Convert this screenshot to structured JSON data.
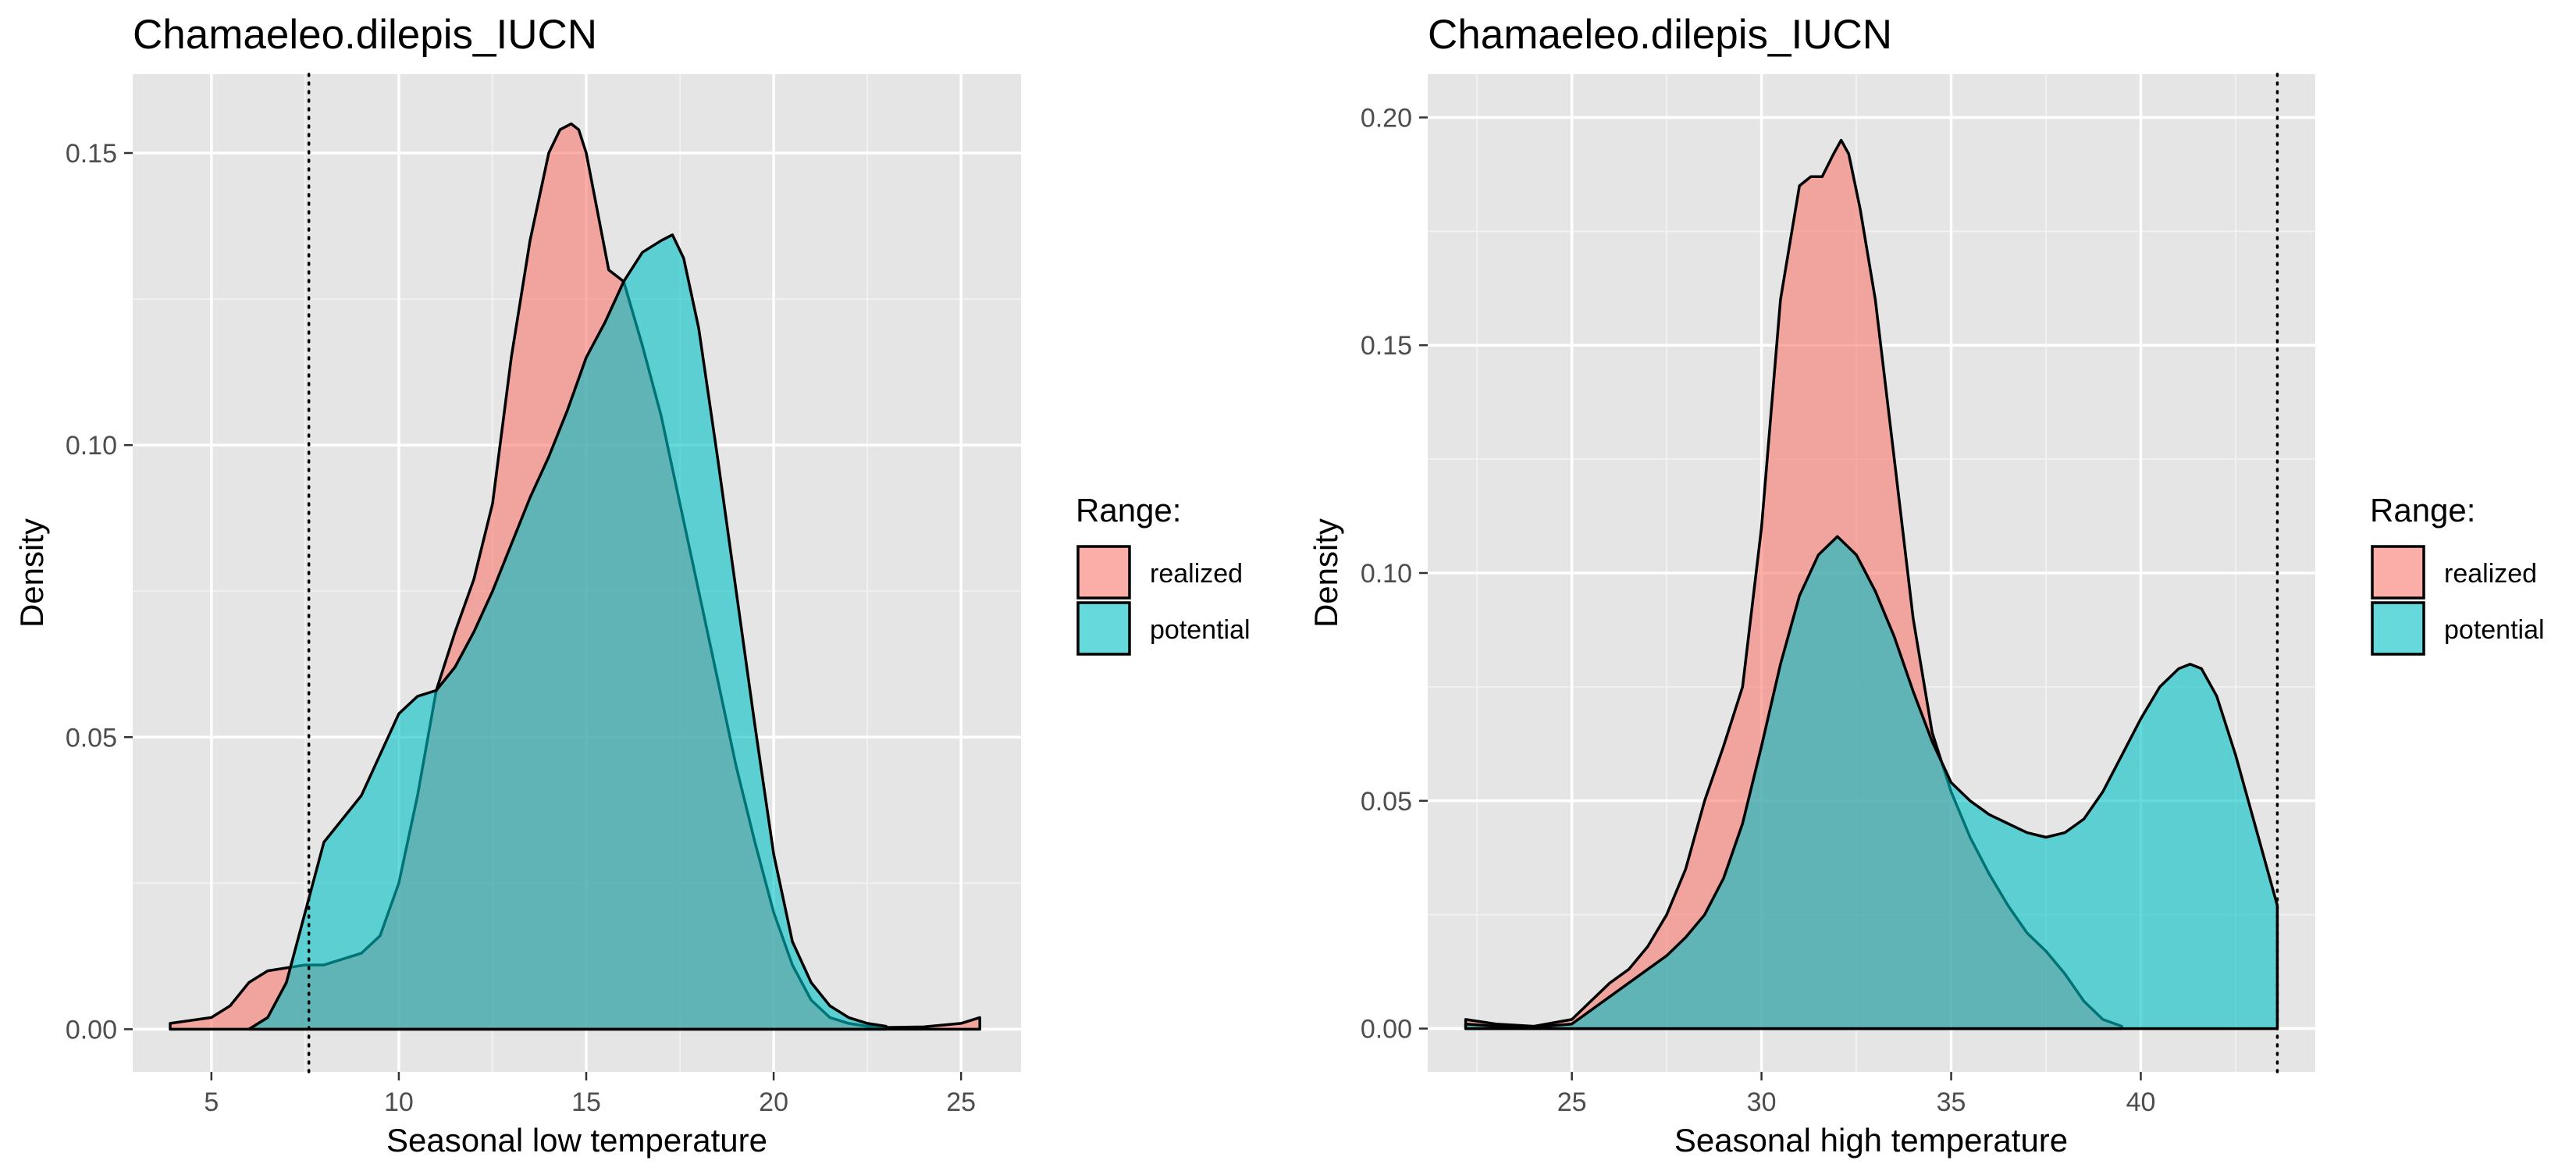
{
  "chart_data": [
    {
      "type": "area",
      "title": "Chamaeleo.dilepis_IUCN",
      "xlabel": "Seasonal low temperature",
      "ylabel": "Density",
      "xlim": [
        2.9,
        26.6
      ],
      "ylim": [
        -0.0073,
        0.1635
      ],
      "xticks": [
        5,
        10,
        15,
        20,
        25
      ],
      "yticks": [
        0.0,
        0.05,
        0.1,
        0.15
      ],
      "xtick_labels": [
        "5",
        "10",
        "15",
        "20",
        "25"
      ],
      "ytick_labels": [
        "0.00",
        "0.05",
        "0.10",
        "0.15"
      ],
      "grid": true,
      "legend": {
        "title": "Range:",
        "position": "right"
      },
      "reference_lines": [
        {
          "axis": "x",
          "value": 7.6,
          "style": "dotted"
        }
      ],
      "series": [
        {
          "name": "realized",
          "color": "#F8766D",
          "x": [
            3.9,
            5.0,
            5.5,
            6.0,
            6.5,
            7.0,
            7.5,
            8.0,
            8.5,
            9.0,
            9.5,
            10.0,
            10.5,
            11.0,
            11.5,
            12.0,
            12.5,
            13.0,
            13.5,
            14.0,
            14.3,
            14.6,
            14.8,
            15.0,
            15.3,
            15.6,
            16.0,
            16.5,
            17.0,
            17.5,
            18.0,
            18.5,
            19.0,
            19.5,
            20.0,
            20.5,
            21.0,
            21.5,
            22.0,
            22.5,
            23.0,
            24.0,
            25.0,
            25.5
          ],
          "y": [
            0.001,
            0.002,
            0.004,
            0.008,
            0.01,
            0.0105,
            0.011,
            0.011,
            0.012,
            0.013,
            0.016,
            0.025,
            0.04,
            0.058,
            0.068,
            0.077,
            0.09,
            0.115,
            0.135,
            0.15,
            0.154,
            0.155,
            0.154,
            0.15,
            0.14,
            0.13,
            0.128,
            0.117,
            0.105,
            0.09,
            0.075,
            0.06,
            0.045,
            0.032,
            0.02,
            0.011,
            0.005,
            0.002,
            0.001,
            0.0005,
            0.0003,
            0.0004,
            0.001,
            0.002
          ]
        },
        {
          "name": "potential",
          "color": "#00BFC4",
          "x": [
            6.0,
            6.5,
            7.0,
            7.5,
            8.0,
            8.5,
            9.0,
            9.5,
            10.0,
            10.5,
            11.0,
            11.5,
            12.0,
            12.5,
            13.0,
            13.5,
            14.0,
            14.5,
            15.0,
            15.5,
            16.0,
            16.5,
            17.0,
            17.3,
            17.6,
            18.0,
            18.5,
            19.0,
            19.5,
            20.0,
            20.5,
            21.0,
            21.5,
            22.0,
            22.5,
            23.0
          ],
          "y": [
            0.0,
            0.002,
            0.008,
            0.02,
            0.032,
            0.036,
            0.04,
            0.047,
            0.054,
            0.057,
            0.058,
            0.062,
            0.068,
            0.075,
            0.083,
            0.091,
            0.098,
            0.106,
            0.115,
            0.121,
            0.128,
            0.133,
            0.135,
            0.136,
            0.132,
            0.12,
            0.098,
            0.075,
            0.052,
            0.03,
            0.015,
            0.008,
            0.004,
            0.002,
            0.001,
            0.0005
          ]
        }
      ]
    },
    {
      "type": "area",
      "title": "Chamaeleo.dilepis_IUCN",
      "xlabel": "Seasonal high temperature",
      "ylabel": "Density",
      "xlim": [
        21.2,
        44.6
      ],
      "ylim": [
        -0.0095,
        0.2095
      ],
      "xticks": [
        25,
        30,
        35,
        40
      ],
      "yticks": [
        0.0,
        0.05,
        0.1,
        0.15,
        0.2
      ],
      "xtick_labels": [
        "25",
        "30",
        "35",
        "40"
      ],
      "ytick_labels": [
        "0.00",
        "0.05",
        "0.10",
        "0.15",
        "0.20"
      ],
      "grid": true,
      "legend": {
        "title": "Range:",
        "position": "right"
      },
      "reference_lines": [
        {
          "axis": "x",
          "value": 43.6,
          "style": "dotted"
        }
      ],
      "series": [
        {
          "name": "realized",
          "color": "#F8766D",
          "x": [
            22.2,
            23.0,
            24.0,
            25.0,
            25.5,
            26.0,
            26.5,
            27.0,
            27.5,
            28.0,
            28.5,
            29.0,
            29.5,
            30.0,
            30.5,
            31.0,
            31.3,
            31.6,
            31.9,
            32.1,
            32.3,
            32.6,
            33.0,
            33.5,
            34.0,
            34.5,
            35.0,
            35.5,
            36.0,
            36.5,
            37.0,
            37.5,
            38.0,
            38.5,
            39.0,
            39.5
          ],
          "y": [
            0.002,
            0.001,
            0.0005,
            0.002,
            0.006,
            0.01,
            0.013,
            0.018,
            0.025,
            0.035,
            0.05,
            0.062,
            0.075,
            0.11,
            0.16,
            0.185,
            0.187,
            0.187,
            0.192,
            0.195,
            0.192,
            0.18,
            0.16,
            0.125,
            0.09,
            0.065,
            0.052,
            0.042,
            0.034,
            0.027,
            0.021,
            0.017,
            0.012,
            0.006,
            0.002,
            0.0005
          ]
        },
        {
          "name": "potential",
          "color": "#00BFC4",
          "x": [
            22.2,
            23.0,
            24.0,
            25.0,
            25.5,
            26.0,
            26.5,
            27.0,
            27.5,
            28.0,
            28.5,
            29.0,
            29.5,
            30.0,
            30.5,
            31.0,
            31.5,
            32.0,
            32.5,
            33.0,
            33.5,
            34.0,
            34.5,
            35.0,
            35.5,
            36.0,
            36.5,
            37.0,
            37.5,
            38.0,
            38.5,
            39.0,
            39.5,
            40.0,
            40.5,
            41.0,
            41.3,
            41.6,
            42.0,
            42.5,
            43.0,
            43.6
          ],
          "y": [
            0.001,
            0.0005,
            0.0003,
            0.001,
            0.004,
            0.007,
            0.01,
            0.013,
            0.016,
            0.02,
            0.025,
            0.033,
            0.045,
            0.062,
            0.08,
            0.095,
            0.104,
            0.108,
            0.104,
            0.096,
            0.086,
            0.074,
            0.063,
            0.054,
            0.05,
            0.047,
            0.045,
            0.043,
            0.042,
            0.043,
            0.046,
            0.052,
            0.06,
            0.068,
            0.075,
            0.079,
            0.08,
            0.079,
            0.073,
            0.06,
            0.045,
            0.027
          ]
        }
      ]
    }
  ]
}
